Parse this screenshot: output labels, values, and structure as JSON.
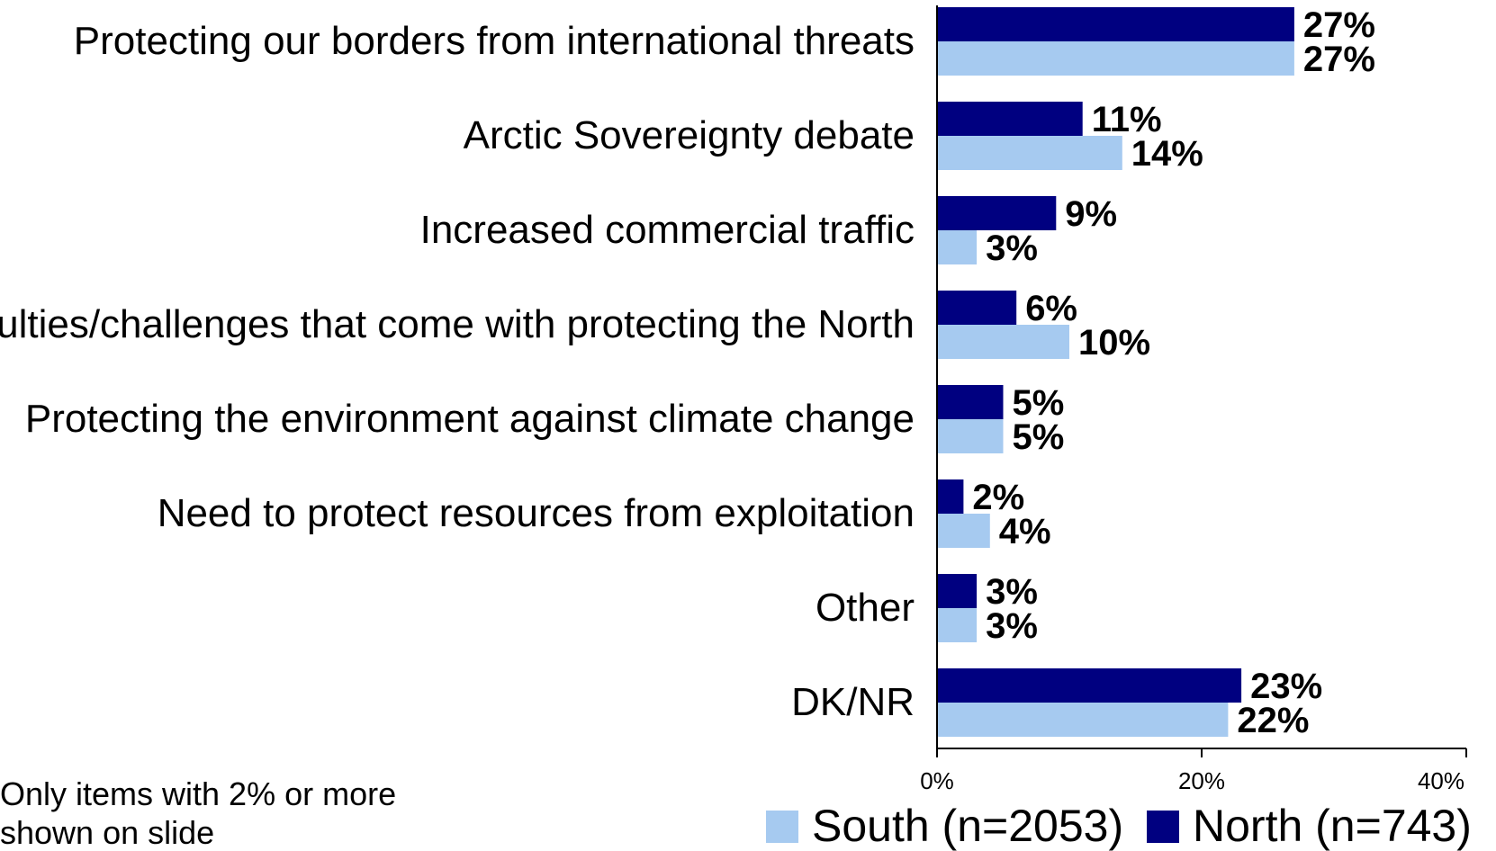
{
  "chart_data": {
    "type": "bar",
    "orientation": "horizontal",
    "categories": [
      "Protecting our borders from international threats",
      "Arctic Sovereignty debate",
      "Increased commercial traffic",
      "Difficulties/challenges that come with protecting the North",
      "Protecting the environment against climate change",
      "Need to protect resources from exploitation",
      "Other",
      "DK/NR"
    ],
    "series": [
      {
        "name": "North (n=743)",
        "color": "#000080",
        "values": [
          27,
          11,
          9,
          6,
          5,
          2,
          3,
          23
        ],
        "labels": [
          "27%",
          "11%",
          "9%",
          "6%",
          "5%",
          "2%",
          "3%",
          "23%"
        ]
      },
      {
        "name": "South (n=2053)",
        "color": "#A6CAF0",
        "values": [
          27,
          14,
          3,
          10,
          5,
          4,
          3,
          22
        ],
        "labels": [
          "27%",
          "14%",
          "3%",
          "10%",
          "5%",
          "4%",
          "3%",
          "22%"
        ]
      }
    ],
    "xlim": [
      0,
      40
    ],
    "xticks": [
      0,
      20,
      40
    ],
    "xtick_labels": [
      "0%",
      "20%",
      "40%"
    ],
    "grid": false,
    "legend": {
      "placement": "bottom",
      "entries": [
        {
          "name": "South (n=2053)",
          "color": "#A6CAF0"
        },
        {
          "name": "North (n=743)",
          "color": "#000080"
        }
      ]
    },
    "note": [
      "Only items with 2% or more",
      "shown on slide"
    ]
  }
}
